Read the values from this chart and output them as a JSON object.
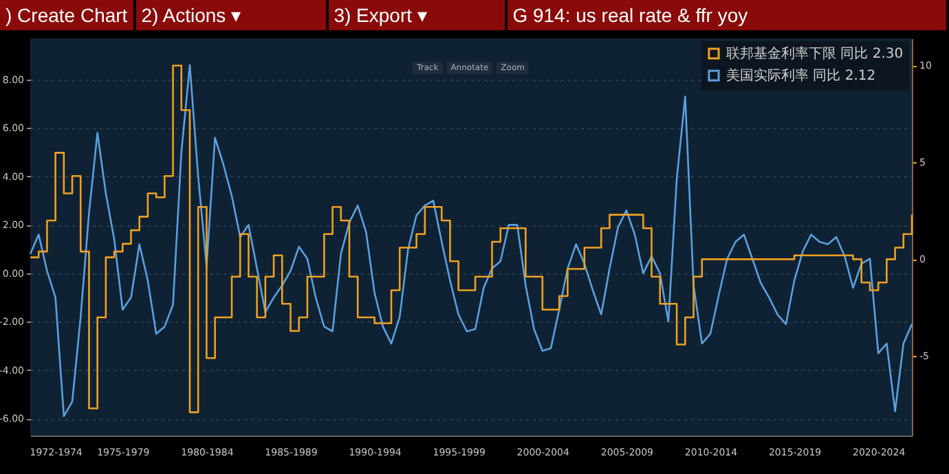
{
  "chart_data": {
    "type": "line",
    "title": "G 914: us real rate & ffr yoy",
    "annotations": [
      ") Create Chart",
      "2) Actions ▾",
      "3) Export ▾",
      "Track",
      "Annotate",
      "Zoom"
    ],
    "categories": [
      null,
      null,
      null,
      "1972-1974",
      null,
      null,
      null,
      null,
      null,
      null,
      null,
      "1975-1979",
      null,
      null,
      null,
      null,
      null,
      null,
      null,
      null,
      null,
      "1980-1984",
      null,
      null,
      null,
      null,
      null,
      null,
      null,
      null,
      null,
      "1985-1989",
      null,
      null,
      null,
      null,
      null,
      null,
      null,
      null,
      null,
      "1990-1994",
      null,
      null,
      null,
      null,
      null,
      null,
      null,
      null,
      null,
      "1995-1999",
      null,
      null,
      null,
      null,
      null,
      null,
      null,
      null,
      null,
      "2000-2004",
      null,
      null,
      null,
      null,
      null,
      null,
      null,
      null,
      null,
      "2005-2009",
      null,
      null,
      null,
      null,
      null,
      null,
      null,
      null,
      null,
      "2010-2014",
      null,
      null,
      null,
      null,
      null,
      null,
      null,
      null,
      null,
      "2015-2019",
      null,
      null,
      null,
      null,
      null,
      null,
      null,
      null,
      null,
      "2020-2024",
      null,
      null,
      null,
      null
    ],
    "ylim": [
      -6.7,
      9.7
    ],
    "yticks": [
      {
        "value": 8,
        "label": "8.00"
      },
      {
        "value": 6,
        "label": "6.00"
      },
      {
        "value": 4,
        "label": "4.00"
      },
      {
        "value": 2,
        "label": "2.00"
      },
      {
        "value": 0,
        "label": "0.00"
      },
      {
        "value": -2,
        "label": "-2.00"
      },
      {
        "value": -4,
        "label": "-4.00"
      },
      {
        "value": -6,
        "label": "-6.00"
      }
    ],
    "y2lim": [
      -9.1,
      11.4
    ],
    "y2ticks": [
      10,
      5,
      0,
      -5
    ],
    "grid": "y",
    "legend": "top right",
    "series": [
      {
        "name": "联邦基金利率下限 同比 2.30",
        "type": "step",
        "axis": "y2",
        "color": "#f0a020",
        "values": [
          0.1,
          0.4,
          2.0,
          5.5,
          3.4,
          4.3,
          0.4,
          -7.7,
          -3.0,
          0.1,
          0.4,
          0.8,
          1.5,
          2.2,
          3.4,
          3.2,
          4.3,
          10.0,
          7.7,
          -7.9,
          2.7,
          -5.1,
          -3.0,
          -3.0,
          -0.9,
          1.3,
          -0.9,
          -3.0,
          -0.9,
          0.2,
          -2.3,
          -3.7,
          -3.0,
          -0.9,
          -0.9,
          1.3,
          2.7,
          2.0,
          -0.9,
          -3.0,
          -3.0,
          -3.3,
          -3.3,
          -1.6,
          0.6,
          0.6,
          1.3,
          2.7,
          2.7,
          2.0,
          -0.1,
          -1.6,
          -1.6,
          -0.9,
          -0.9,
          0.9,
          1.6,
          1.6,
          1.6,
          -0.9,
          -0.9,
          -2.6,
          -2.6,
          -1.9,
          -0.5,
          -0.5,
          0.6,
          0.6,
          1.6,
          2.3,
          2.3,
          2.3,
          2.3,
          1.6,
          -0.9,
          -2.3,
          -2.3,
          -4.4,
          -3.0,
          -0.9,
          0,
          0,
          0,
          0,
          0,
          0,
          0,
          0,
          0,
          0,
          0,
          0.2,
          0.2,
          0.2,
          0.2,
          0.2,
          0.2,
          0.2,
          0,
          -1.2,
          -1.6,
          -1.2,
          0,
          0.6,
          1.3,
          2.3
        ]
      },
      {
        "name": "美国实际利率 同比 2.12",
        "type": "line",
        "color": "#5aa0e0",
        "values": [
          0.8,
          1.6,
          0.1,
          -1.0,
          -5.9,
          -5.3,
          -1.8,
          2.5,
          5.8,
          3.3,
          1.4,
          -1.5,
          -1.0,
          1.2,
          -0.3,
          -2.5,
          -2.2,
          -1.3,
          5.0,
          8.6,
          4.0,
          0.3,
          5.6,
          4.5,
          3.2,
          1.5,
          2.0,
          0.2,
          -1.6,
          -1.0,
          -0.5,
          0.1,
          1.1,
          0.6,
          -1.0,
          -2.2,
          -2.4,
          0.8,
          2.1,
          2.8,
          1.7,
          -0.8,
          -2.2,
          -2.9,
          -1.8,
          1.0,
          2.4,
          2.8,
          3.0,
          1.3,
          -0.3,
          -1.7,
          -2.4,
          -2.3,
          -0.6,
          0.2,
          0.5,
          2.0,
          2.0,
          -0.5,
          -2.3,
          -3.2,
          -3.1,
          -1.5,
          0.2,
          1.2,
          0.4,
          -0.7,
          -1.7,
          0.2,
          1.9,
          2.6,
          1.6,
          0.0,
          0.7,
          0.0,
          -2.0,
          3.9,
          7.3,
          -0.5,
          -2.9,
          -2.5,
          -0.9,
          0.6,
          1.3,
          1.6,
          0.6,
          -0.4,
          -1.0,
          -1.7,
          -2.1,
          -0.3,
          0.9,
          1.6,
          1.3,
          1.2,
          1.5,
          0.7,
          -0.6,
          0.4,
          0.6,
          -3.3,
          -2.9,
          -5.7,
          -2.9,
          -2.1
        ]
      }
    ]
  }
}
